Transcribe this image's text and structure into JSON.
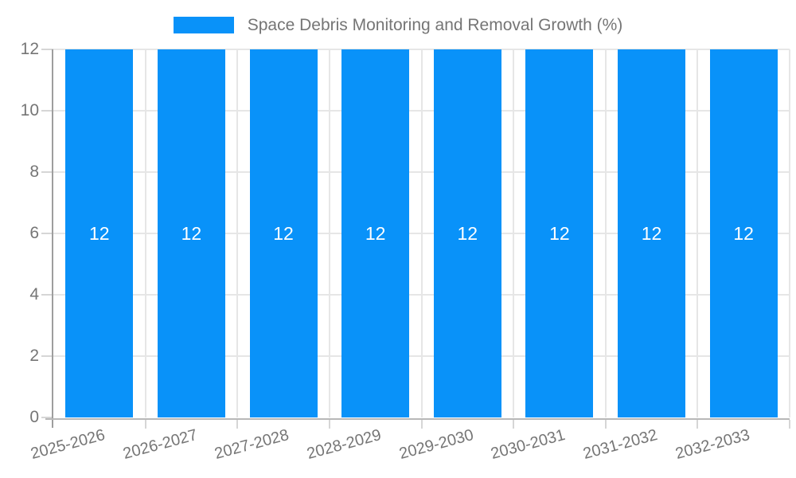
{
  "legend": {
    "label": "Space Debris Monitoring and Removal Growth (%)"
  },
  "chart_data": {
    "type": "bar",
    "title": "Space Debris Monitoring and Removal Growth (%)",
    "categories": [
      "2025-2026",
      "2026-2027",
      "2027-2028",
      "2028-2029",
      "2029-2030",
      "2030-2031",
      "2031-2032",
      "2032-2033"
    ],
    "series": [
      {
        "name": "Space Debris Monitoring and Removal Growth (%)",
        "values": [
          12,
          12,
          12,
          12,
          12,
          12,
          12,
          12
        ]
      }
    ],
    "bar_value_labels": [
      "12",
      "12",
      "12",
      "12",
      "12",
      "12",
      "12",
      "12"
    ],
    "xlabel": "",
    "ylabel": "",
    "ylim": [
      0,
      12
    ],
    "yticks": [
      0,
      2,
      4,
      6,
      8,
      10,
      12
    ],
    "grid": true,
    "legend_position": "top",
    "x_tick_rotation_deg": -15,
    "colors": {
      "bar": "#0992f9",
      "axis_text": "#757575",
      "gridline": "#e6e6e6",
      "y_axis_line": "#9e9e9e",
      "x_axis_line": "#b8b8b8",
      "tick_mark": "#d6d6d6",
      "value_label": "#ffffff",
      "background": "#ffffff"
    }
  }
}
